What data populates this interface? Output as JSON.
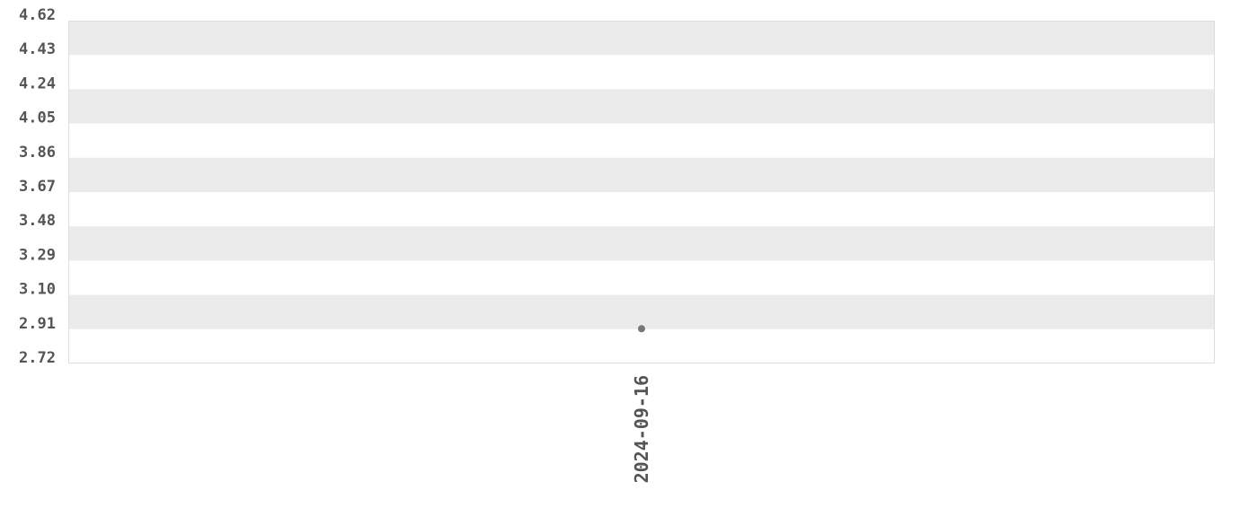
{
  "chart_data": {
    "type": "scatter",
    "title": "",
    "xlabel": "",
    "ylabel": "",
    "x_categories": [
      "2024-09-16"
    ],
    "points": [
      {
        "x": "2024-09-16",
        "y": 2.91
      }
    ],
    "y_ticks": [
      "4.62",
      "4.43",
      "4.24",
      "4.05",
      "3.86",
      "3.67",
      "3.48",
      "3.29",
      "3.10",
      "2.91",
      "2.72"
    ],
    "ylim": [
      2.72,
      4.62
    ],
    "grid": "alternating horizontal bands",
    "colors": {
      "band": "#ebebeb",
      "point": "#777777",
      "text": "#555555",
      "border": "#dddddd"
    }
  }
}
